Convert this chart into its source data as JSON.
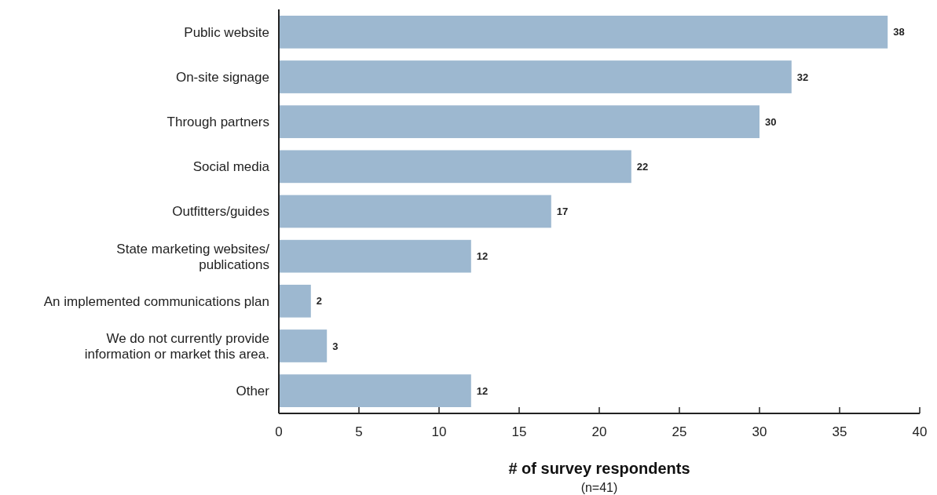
{
  "chart_data": {
    "type": "bar",
    "orientation": "horizontal",
    "xlabel": "# of survey respondents",
    "annotations": [
      "(n=41)"
    ],
    "categories": [
      "Public website",
      "On-site signage",
      "Through partners",
      "Social media",
      "Outfitters/guides",
      "State marketing websites/\npublications",
      "An implemented communications plan",
      "We do not currently provide\ninformation or market this area.",
      "Other"
    ],
    "values": [
      38,
      32,
      30,
      22,
      17,
      12,
      2,
      3,
      12
    ],
    "color": "#9db8d0",
    "xlim": [
      0,
      40
    ],
    "xticks": [
      0,
      5,
      10,
      15,
      20,
      25,
      30,
      35,
      40
    ],
    "data_labels": true,
    "grid": false
  }
}
